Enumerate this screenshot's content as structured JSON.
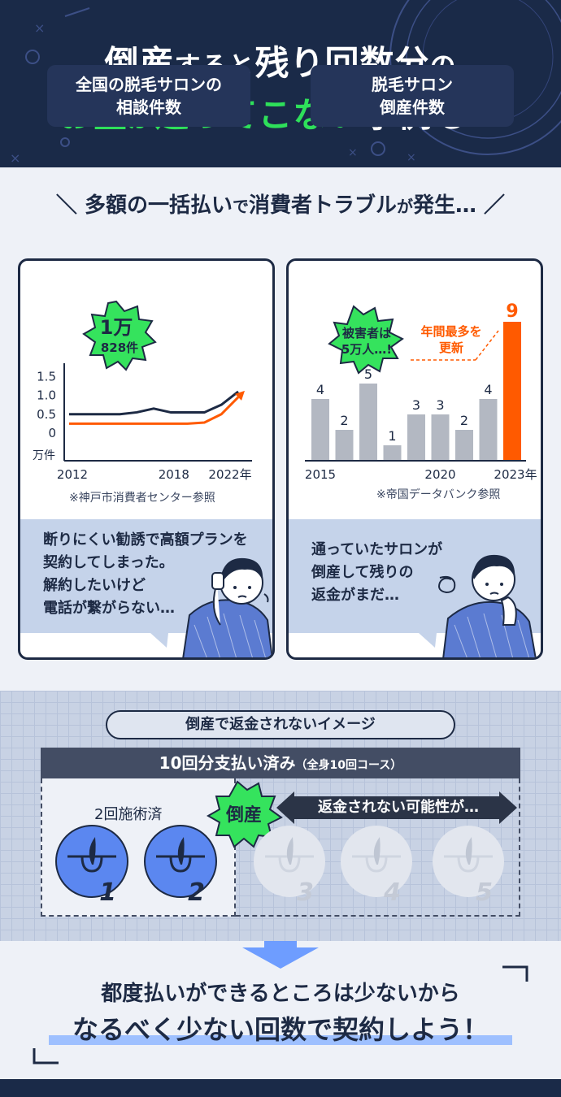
{
  "hero": {
    "line1_a": "倒産",
    "line1_b": "すると",
    "line1_c": "残り回数分",
    "line1_d": "の",
    "line2_a": "お金",
    "line2_b": "が",
    "line2_c": "返ってこない",
    "line2_d": "事例も…"
  },
  "section1": {
    "heading_a": "＼ 多額の一括払い",
    "heading_b": "で",
    "heading_c": "消費者トラブル",
    "heading_d": "が",
    "heading_e": "発生… ／"
  },
  "left_card": {
    "title_line1": "全国の脱毛サロンの",
    "title_line2": "相談件数",
    "burst_line1": "1万",
    "burst_line2": "828件",
    "y_ticks": [
      "1.5",
      "1.0",
      "0.5",
      "0"
    ],
    "y_unit": "万件",
    "x_ticks": [
      "2012",
      "2018",
      "2022年"
    ],
    "source": "※神戸市消費者センター参照",
    "bubble": "断りにくい勧誘で高額プランを\n契約してしまった。\n解約したいけど\n電話が繋がらない…"
  },
  "right_card": {
    "title_line1": "脱毛サロン",
    "title_line2": "倒産件数",
    "burst_line1": "被害者は",
    "burst_line2": "5万人…!",
    "record_line1": "年間最多を",
    "record_line2": "更新",
    "x_ticks": [
      "2015",
      "2020",
      "2023年"
    ],
    "source": "※帝国データバンク参照",
    "bubble": "通っていたサロンが\n倒産して残りの\n返金がまだ…"
  },
  "chart_data": [
    {
      "type": "line",
      "title": "全国の脱毛サロンの相談件数",
      "ylabel": "万件",
      "ylim": [
        0,
        1.5
      ],
      "x": [
        2012,
        2013,
        2014,
        2015,
        2016,
        2017,
        2018,
        2019,
        2020,
        2021,
        2022
      ],
      "series": [
        {
          "values": [
            0.5,
            0.5,
            0.5,
            0.5,
            0.55,
            0.65,
            0.55,
            0.55,
            0.55,
            0.75,
            1.1
          ]
        },
        {
          "values": [
            0.25,
            0.25,
            0.25,
            0.25,
            0.25,
            0.25,
            0.25,
            0.25,
            0.28,
            0.5,
            0.95
          ]
        }
      ]
    },
    {
      "type": "bar",
      "title": "脱毛サロン倒産件数",
      "categories": [
        "2015",
        "2016",
        "2017",
        "2018",
        "2019",
        "2020",
        "2021",
        "2022",
        "2023年"
      ],
      "values": [
        4,
        2,
        5,
        1,
        3,
        3,
        2,
        4,
        9
      ],
      "highlight_color": "#ff5a00",
      "bar_color": "#b3b8c2"
    }
  ],
  "section2": {
    "pill": "倒産で返金されないイメージ",
    "bar_main": "10回分支払い済み",
    "bar_sub": "（全身10回コース）",
    "done_label": "2回施術済",
    "bankrupt": "倒産",
    "no_refund": "返金されない可能性が…",
    "sessions": [
      "1",
      "2",
      "3",
      "4",
      "5"
    ]
  },
  "section3": {
    "cta_line1": "都度払いができるところは少ないから",
    "cta_line2": "なるべく少ない回数で契約しよう！"
  }
}
